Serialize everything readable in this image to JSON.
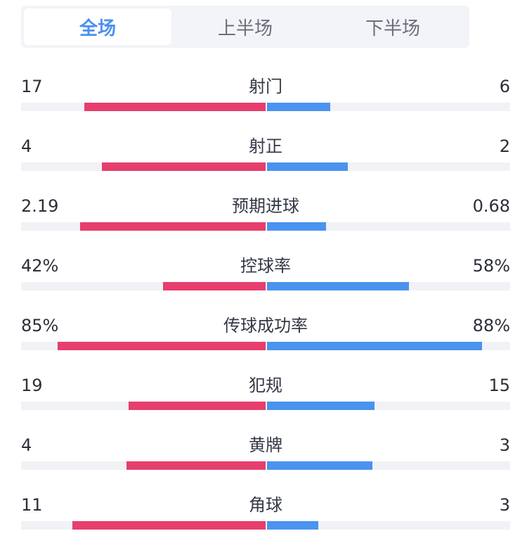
{
  "tabs": [
    {
      "label": "全场",
      "active": true
    },
    {
      "label": "上半场",
      "active": false
    },
    {
      "label": "下半场",
      "active": false
    }
  ],
  "colors": {
    "home": "#e63e6d",
    "away": "#4a93ee",
    "active_tab": "#4a90f0"
  },
  "stats": [
    {
      "label": "射门",
      "home": "17",
      "away": "6",
      "home_ratio": 0.74,
      "away_ratio": 0.26
    },
    {
      "label": "射正",
      "home": "4",
      "away": "2",
      "home_ratio": 0.67,
      "away_ratio": 0.33
    },
    {
      "label": "预期进球",
      "home": "2.19",
      "away": "0.68",
      "home_ratio": 0.76,
      "away_ratio": 0.24
    },
    {
      "label": "控球率",
      "home": "42%",
      "away": "58%",
      "home_ratio": 0.42,
      "away_ratio": 0.58
    },
    {
      "label": "传球成功率",
      "home": "85%",
      "away": "88%",
      "home_ratio": 0.85,
      "away_ratio": 0.88
    },
    {
      "label": "犯规",
      "home": "19",
      "away": "15",
      "home_ratio": 0.56,
      "away_ratio": 0.44
    },
    {
      "label": "黄牌",
      "home": "4",
      "away": "3",
      "home_ratio": 0.57,
      "away_ratio": 0.43
    },
    {
      "label": "角球",
      "home": "11",
      "away": "3",
      "home_ratio": 0.79,
      "away_ratio": 0.21
    }
  ]
}
